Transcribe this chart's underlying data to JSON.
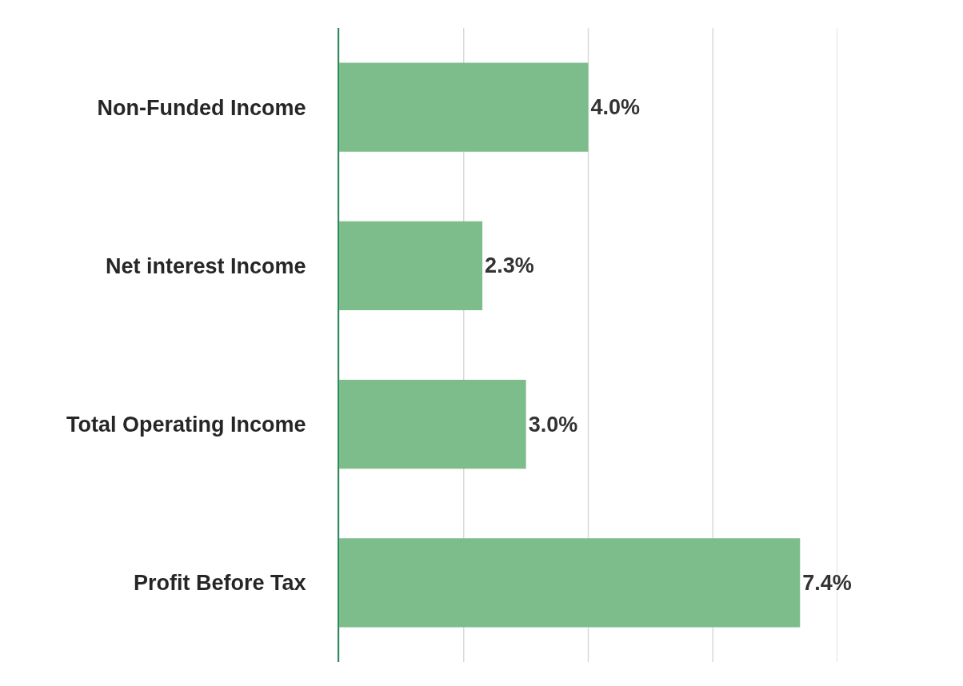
{
  "chart_data": {
    "type": "bar",
    "orientation": "horizontal",
    "categories": [
      "Non-Funded Income",
      "Net interest Income",
      "Total Operating Income",
      "Profit Before Tax"
    ],
    "values": [
      4.0,
      2.3,
      3.0,
      7.4
    ],
    "value_labels": [
      "4.0%",
      "2.3%",
      "3.0%",
      "7.4%"
    ],
    "color": "#7dbd8c",
    "xlim": [
      0,
      8
    ],
    "xticks": [
      {
        "value": 0,
        "label": null
      },
      {
        "value": 2,
        "label": null
      },
      {
        "value": 4,
        "label": null
      },
      {
        "value": 6,
        "label": null
      },
      {
        "value": 8,
        "label": null
      }
    ],
    "grid": "x",
    "tick_labels": "y"
  }
}
